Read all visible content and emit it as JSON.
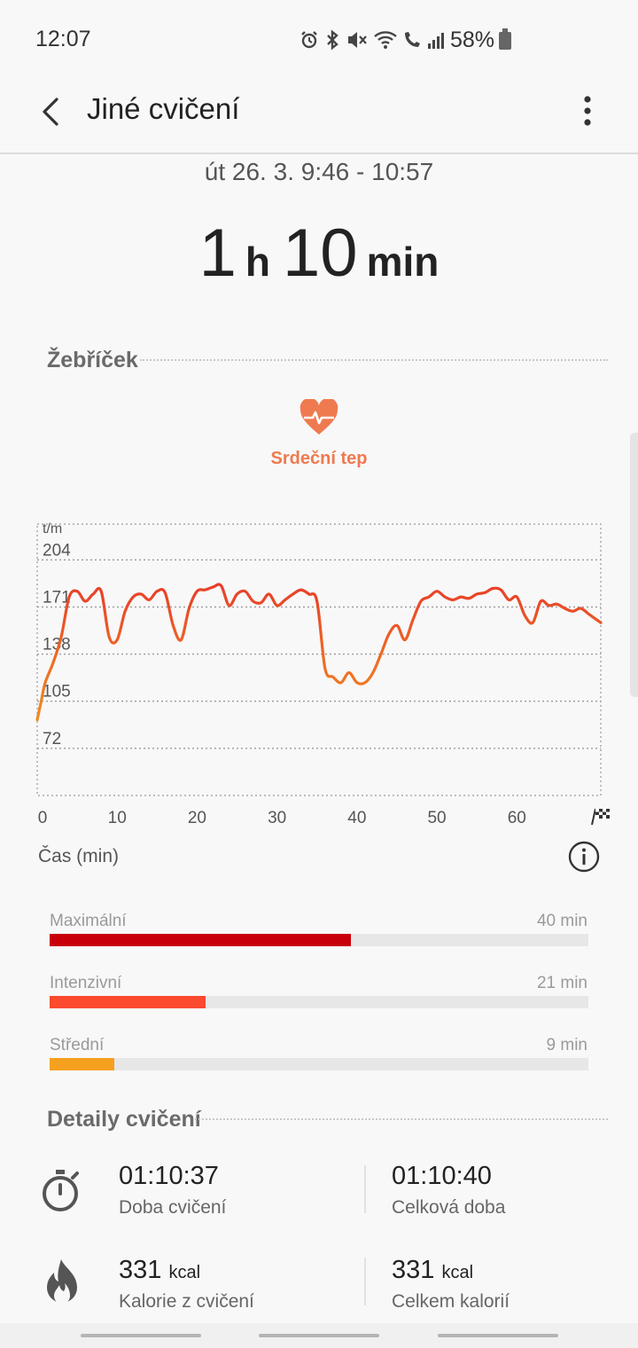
{
  "status_bar": {
    "time": "12:07",
    "battery_percent": "58%"
  },
  "app_bar": {
    "title": "Jiné cvičení"
  },
  "session": {
    "date_range": "út 26. 3. 9:46 - 10:57",
    "hours": "1",
    "hours_unit": "h",
    "minutes": "10",
    "minutes_unit": "min"
  },
  "ranking": {
    "title": "Žebříček",
    "metric_label": "Srdeční tep"
  },
  "chart_data": {
    "type": "line",
    "y_unit_label": "t/m",
    "y_ticks": [
      "204",
      "171",
      "138",
      "105",
      "72"
    ],
    "x_ticks": [
      "0",
      "10",
      "20",
      "30",
      "40",
      "50",
      "60"
    ],
    "xlabel": "Čas (min)",
    "ylim": [
      39,
      229
    ],
    "xlim": [
      0,
      70.5
    ],
    "x": [
      0,
      0.5,
      1,
      2,
      3,
      4,
      5,
      6,
      7,
      8,
      9,
      10,
      11,
      12,
      13,
      14,
      15,
      16,
      17,
      18,
      19,
      20,
      21,
      22,
      23,
      24,
      25,
      26,
      27,
      28,
      29,
      30,
      31,
      32,
      33,
      34,
      35,
      36,
      37,
      38,
      39,
      40,
      41,
      42,
      43,
      44,
      45,
      46,
      47,
      48,
      49,
      50,
      51,
      52,
      53,
      54,
      55,
      56,
      57,
      58,
      59,
      60,
      61,
      62,
      63,
      64,
      65,
      66,
      67,
      68,
      69,
      70,
      70.5
    ],
    "values": [
      92,
      105,
      118,
      132,
      150,
      178,
      182,
      175,
      180,
      182,
      150,
      148,
      168,
      178,
      180,
      176,
      182,
      181,
      158,
      148,
      170,
      182,
      183,
      185,
      186,
      172,
      180,
      182,
      175,
      174,
      180,
      172,
      176,
      180,
      183,
      180,
      175,
      128,
      122,
      118,
      125,
      118,
      118,
      125,
      138,
      152,
      158,
      148,
      162,
      175,
      178,
      182,
      178,
      176,
      178,
      177,
      180,
      181,
      184,
      183,
      176,
      178,
      165,
      160,
      175,
      172,
      173,
      170,
      168,
      170,
      166,
      162,
      160
    ],
    "line_colors": [
      "#ef9a20",
      "#e6342a"
    ]
  },
  "zones": [
    {
      "name": "Maximální",
      "value": "40 min",
      "fraction": 0.56,
      "color": "#c8000c"
    },
    {
      "name": "Intenzivní",
      "value": "21 min",
      "fraction": 0.29,
      "color": "#fb4a2e"
    },
    {
      "name": "Střední",
      "value": "9 min",
      "fraction": 0.12,
      "color": "#f5a01e"
    }
  ],
  "details": {
    "title": "Detaily cvičení",
    "exercise_time": {
      "value": "01:10:37",
      "label": "Doba cvičení"
    },
    "total_time": {
      "value": "01:10:40",
      "label": "Celková doba"
    },
    "exercise_calories": {
      "value": "331",
      "unit": "kcal",
      "label": "Kalorie z cvičení"
    },
    "total_calories": {
      "value": "331",
      "unit": "kcal",
      "label": "Celkem kalorií"
    }
  },
  "colors": {
    "accent": "#ef7a50"
  }
}
